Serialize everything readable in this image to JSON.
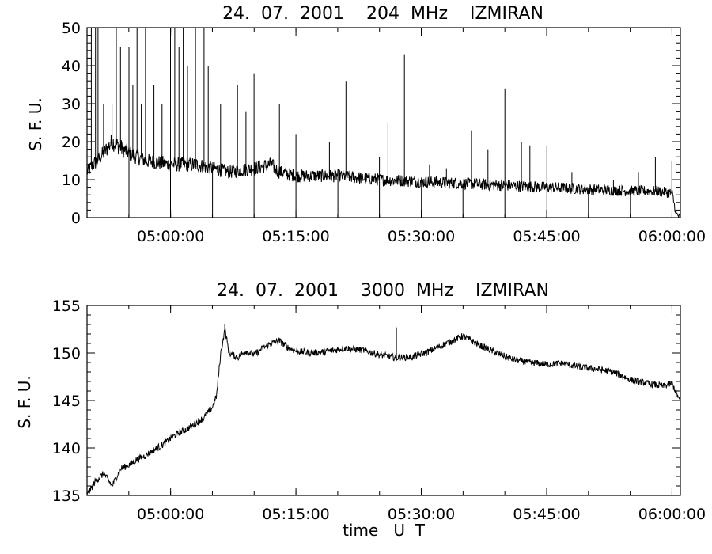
{
  "chart_data": [
    {
      "type": "line",
      "title": "24.  07.  2001    204  MHz    IZMIRAN",
      "ylabel": "S. F. U.",
      "xlabel": "",
      "ylim": [
        0,
        50
      ],
      "xlim": [
        "04:50:00",
        "06:01:00"
      ],
      "yticks": [
        "0",
        "10",
        "20",
        "30",
        "40",
        "50"
      ],
      "xticks": [
        "05:00:00",
        "05:15:00",
        "05:30:00",
        "05:45:00",
        "06:00:00"
      ],
      "series": [
        {
          "baseline": [
            [
              "04:50:00",
              12
            ],
            [
              "04:52:00",
              17
            ],
            [
              "04:53:00",
              20
            ],
            [
              "04:55:00",
              17
            ],
            [
              "04:57:00",
              15
            ],
            [
              "05:00:00",
              14
            ],
            [
              "05:03:00",
              14
            ],
            [
              "05:05:00",
              13
            ],
            [
              "05:07:00",
              12
            ],
            [
              "05:10:00",
              13
            ],
            [
              "05:12:00",
              14
            ],
            [
              "05:13:00",
              12
            ],
            [
              "05:15:00",
              11
            ],
            [
              "05:20:00",
              11
            ],
            [
              "05:25:00",
              10
            ],
            [
              "05:30:00",
              9.5
            ],
            [
              "05:35:00",
              9
            ],
            [
              "05:40:00",
              8.5
            ],
            [
              "05:45:00",
              8
            ],
            [
              "05:50:00",
              7.5
            ],
            [
              "05:55:00",
              7
            ],
            [
              "05:58:00",
              7
            ],
            [
              "06:00:00",
              6.5
            ],
            [
              "06:00:30",
              1
            ],
            [
              "06:01:00",
              0
            ]
          ],
          "spikes": [
            [
              "04:50:30",
              50
            ],
            [
              "04:51:00",
              50
            ],
            [
              "04:51:20",
              50
            ],
            [
              "04:52:00",
              30
            ],
            [
              "04:53:00",
              30
            ],
            [
              "04:53:30",
              50
            ],
            [
              "04:54:00",
              45
            ],
            [
              "04:55:00",
              45
            ],
            [
              "04:55:30",
              35
            ],
            [
              "04:56:00",
              50
            ],
            [
              "04:56:30",
              30
            ],
            [
              "04:57:00",
              50
            ],
            [
              "04:58:00",
              35
            ],
            [
              "04:59:00",
              30
            ],
            [
              "05:00:00",
              50
            ],
            [
              "05:00:30",
              50
            ],
            [
              "05:01:00",
              45
            ],
            [
              "05:01:30",
              50
            ],
            [
              "05:02:00",
              40
            ],
            [
              "05:03:00",
              50
            ],
            [
              "05:04:00",
              50
            ],
            [
              "05:04:30",
              40
            ],
            [
              "05:06:00",
              30
            ],
            [
              "05:07:00",
              47
            ],
            [
              "05:08:00",
              35
            ],
            [
              "05:09:00",
              28
            ],
            [
              "05:10:00",
              38
            ],
            [
              "05:12:00",
              35
            ],
            [
              "05:13:00",
              30
            ],
            [
              "05:15:00",
              22
            ],
            [
              "05:19:00",
              20
            ],
            [
              "05:21:00",
              36
            ],
            [
              "05:25:00",
              16
            ],
            [
              "05:26:00",
              25
            ],
            [
              "05:28:00",
              43
            ],
            [
              "05:31:00",
              14
            ],
            [
              "05:33:00",
              13
            ],
            [
              "05:36:00",
              23
            ],
            [
              "05:38:00",
              18
            ],
            [
              "05:40:00",
              34
            ],
            [
              "05:42:00",
              20
            ],
            [
              "05:43:00",
              19
            ],
            [
              "05:45:00",
              19
            ],
            [
              "05:48:00",
              12
            ],
            [
              "05:53:00",
              10
            ],
            [
              "05:56:00",
              12
            ],
            [
              "05:58:00",
              16
            ],
            [
              "06:00:00",
              15
            ]
          ],
          "dips": [
            "04:55:00",
            "05:00:00",
            "05:05:00",
            "05:10:00",
            "05:15:00",
            "05:20:00",
            "05:25:00",
            "05:30:00",
            "05:35:00",
            "05:40:00",
            "05:45:00",
            "05:50:00",
            "05:55:00"
          ]
        }
      ]
    },
    {
      "type": "line",
      "title": "24.  07.  2001    3000  MHz    IZMIRAN",
      "ylabel": "S. F. U.",
      "xlabel": "time   U  T",
      "ylim": [
        135,
        155
      ],
      "xlim": [
        "04:50:00",
        "06:01:00"
      ],
      "yticks": [
        "135",
        "140",
        "145",
        "150",
        "155"
      ],
      "xticks": [
        "05:00:00",
        "05:15:00",
        "05:30:00",
        "05:45:00",
        "06:00:00"
      ],
      "series": [
        {
          "points": [
            [
              "04:50:00",
              135
            ],
            [
              "04:51:00",
              136.5
            ],
            [
              "04:52:00",
              137.3
            ],
            [
              "04:53:00",
              136
            ],
            [
              "04:54:00",
              137.8
            ],
            [
              "04:55:00",
              138.2
            ],
            [
              "04:56:00",
              138.8
            ],
            [
              "04:57:00",
              139.2
            ],
            [
              "04:58:00",
              139.8
            ],
            [
              "04:59:00",
              140.3
            ],
            [
              "05:00:00",
              141
            ],
            [
              "05:01:00",
              141.6
            ],
            [
              "05:02:00",
              142
            ],
            [
              "05:03:00",
              142.6
            ],
            [
              "05:04:00",
              143.2
            ],
            [
              "05:05:00",
              144.3
            ],
            [
              "05:05:30",
              145.5
            ],
            [
              "05:06:00",
              150
            ],
            [
              "05:06:30",
              152.5
            ],
            [
              "05:07:00",
              150
            ],
            [
              "05:08:00",
              149.5
            ],
            [
              "05:09:00",
              150.2
            ],
            [
              "05:10:00",
              149.8
            ],
            [
              "05:11:00",
              150.5
            ],
            [
              "05:12:00",
              151
            ],
            [
              "05:13:00",
              151.3
            ],
            [
              "05:14:00",
              150.6
            ],
            [
              "05:15:00",
              150.2
            ],
            [
              "05:17:00",
              150
            ],
            [
              "05:19:00",
              150.2
            ],
            [
              "05:21:00",
              150.5
            ],
            [
              "05:23:00",
              150.3
            ],
            [
              "05:25:00",
              149.8
            ],
            [
              "05:27:00",
              149.5
            ],
            [
              "05:29:00",
              149.6
            ],
            [
              "05:31:00",
              150.2
            ],
            [
              "05:33:00",
              151
            ],
            [
              "05:35:00",
              151.8
            ],
            [
              "05:37:00",
              150.8
            ],
            [
              "05:39:00",
              150
            ],
            [
              "05:41:00",
              149.3
            ],
            [
              "05:43:00",
              149
            ],
            [
              "05:45:00",
              148.8
            ],
            [
              "05:47:00",
              148.9
            ],
            [
              "05:49:00",
              148.5
            ],
            [
              "05:51:00",
              148.3
            ],
            [
              "05:53:00",
              148
            ],
            [
              "05:55:00",
              147.2
            ],
            [
              "05:57:00",
              146.8
            ],
            [
              "05:59:00",
              146.5
            ],
            [
              "06:00:00",
              146.8
            ],
            [
              "06:01:00",
              144.8
            ]
          ],
          "spikes": [
            [
              "05:06:30",
              153
            ],
            [
              "05:27:00",
              152.7
            ]
          ]
        }
      ]
    }
  ]
}
